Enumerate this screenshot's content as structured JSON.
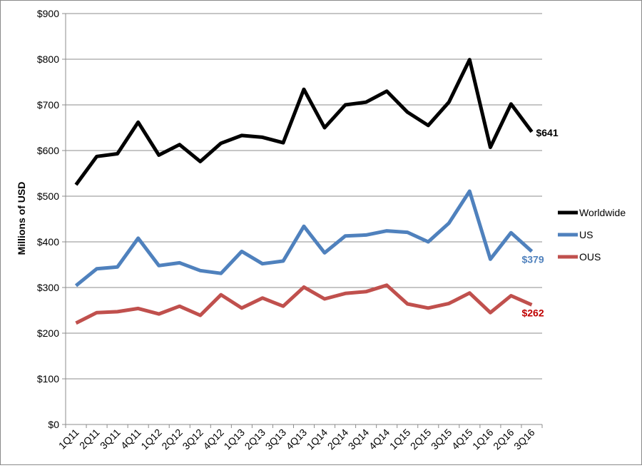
{
  "chart_data": {
    "type": "line",
    "ylabel": "Millions of USD",
    "ylim": [
      0,
      900
    ],
    "y_ticks": [
      0,
      100,
      200,
      300,
      400,
      500,
      600,
      700,
      800,
      900
    ],
    "y_tick_labels": [
      "$0",
      "$100",
      "$200",
      "$300",
      "$400",
      "$500",
      "$600",
      "$700",
      "$800",
      "$900"
    ],
    "grid": true,
    "legend_position": "right",
    "categories": [
      "1Q11",
      "2Q11",
      "3Q11",
      "4Q11",
      "1Q12",
      "2Q12",
      "3Q12",
      "4Q12",
      "1Q13",
      "2Q13",
      "3Q13",
      "4Q13",
      "1Q14",
      "2Q14",
      "3Q14",
      "4Q14",
      "1Q15",
      "2Q15",
      "3Q15",
      "4Q15",
      "1Q16",
      "2Q16",
      "3Q16"
    ],
    "series": [
      {
        "name": "Worldwide",
        "color": "#000000",
        "values": [
          525,
          587,
          593,
          662,
          590,
          613,
          576,
          616,
          633,
          629,
          617,
          734,
          650,
          700,
          706,
          730,
          684,
          655,
          706,
          799,
          607,
          702,
          641
        ],
        "end_label": "$641"
      },
      {
        "name": "US",
        "color": "#4f81bd",
        "values": [
          304,
          341,
          345,
          408,
          348,
          354,
          337,
          331,
          379,
          352,
          358,
          434,
          376,
          413,
          415,
          424,
          421,
          400,
          441,
          511,
          362,
          420,
          379
        ],
        "end_label": "$379"
      },
      {
        "name": "OUS",
        "color": "#c0504d",
        "values": [
          222,
          245,
          247,
          254,
          242,
          259,
          239,
          284,
          255,
          277,
          259,
          301,
          275,
          287,
          291,
          305,
          264,
          255,
          265,
          288,
          245,
          282,
          262
        ],
        "end_label": "$262"
      }
    ]
  }
}
